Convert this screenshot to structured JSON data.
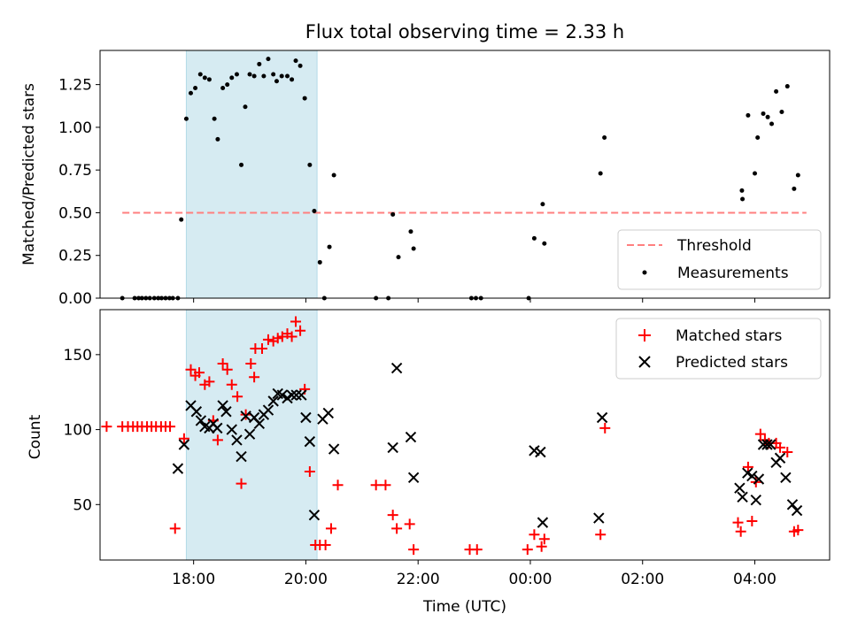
{
  "title": "Flux total observing time = 2.33 h",
  "colors": {
    "threshold": "#ff7f7f",
    "measurement": "#000000",
    "matched": "#ff0000",
    "predicted": "#000000",
    "shade": "#add8e6"
  },
  "chart_data": [
    {
      "type": "scatter",
      "ylabel": "Matched/Predicted stars",
      "xlim_hours": [
        16.333,
        29.333
      ],
      "ylim": [
        0,
        1.45
      ],
      "yticks": [
        0,
        0.25,
        0.5,
        0.75,
        1.0,
        1.25
      ],
      "ytick_labels": [
        "0.00",
        "0.25",
        "0.50",
        "0.75",
        "1.00",
        "1.25"
      ],
      "x_unit": "hours UTC from 00:00 of first night",
      "shaded_span_hours": [
        17.87,
        20.2
      ],
      "threshold": {
        "label": "Threshold",
        "y": 0.5,
        "x_range_hours": [
          16.73,
          28.92
        ]
      },
      "legend": {
        "position": "lower right",
        "entries": [
          "Threshold",
          "Measurements"
        ]
      },
      "series": [
        {
          "name": "Measurements",
          "points": [
            [
              16.73,
              0.0
            ],
            [
              16.95,
              0.0
            ],
            [
              17.02,
              0.0
            ],
            [
              17.08,
              0.0
            ],
            [
              17.15,
              0.0
            ],
            [
              17.22,
              0.0
            ],
            [
              17.3,
              0.0
            ],
            [
              17.37,
              0.0
            ],
            [
              17.43,
              0.0
            ],
            [
              17.5,
              0.0
            ],
            [
              17.57,
              0.0
            ],
            [
              17.63,
              0.0
            ],
            [
              17.72,
              0.0
            ],
            [
              17.78,
              0.46
            ],
            [
              17.87,
              1.05
            ],
            [
              17.95,
              1.2
            ],
            [
              18.03,
              1.23
            ],
            [
              18.12,
              1.31
            ],
            [
              18.2,
              1.29
            ],
            [
              18.28,
              1.28
            ],
            [
              18.37,
              1.05
            ],
            [
              18.43,
              0.93
            ],
            [
              18.52,
              1.23
            ],
            [
              18.6,
              1.25
            ],
            [
              18.68,
              1.29
            ],
            [
              18.77,
              1.31
            ],
            [
              18.85,
              0.78
            ],
            [
              18.92,
              1.12
            ],
            [
              19.0,
              1.31
            ],
            [
              19.08,
              1.3
            ],
            [
              19.17,
              1.37
            ],
            [
              19.25,
              1.3
            ],
            [
              19.33,
              1.4
            ],
            [
              19.42,
              1.31
            ],
            [
              19.48,
              1.27
            ],
            [
              19.57,
              1.3
            ],
            [
              19.67,
              1.3
            ],
            [
              19.75,
              1.28
            ],
            [
              19.82,
              1.39
            ],
            [
              19.9,
              1.36
            ],
            [
              19.98,
              1.17
            ],
            [
              20.07,
              0.78
            ],
            [
              20.15,
              0.51
            ],
            [
              20.25,
              0.21
            ],
            [
              20.33,
              0.0
            ],
            [
              20.42,
              0.3
            ],
            [
              20.5,
              0.72
            ],
            [
              21.25,
              0.0
            ],
            [
              21.47,
              0.0
            ],
            [
              21.55,
              0.49
            ],
            [
              21.65,
              0.24
            ],
            [
              21.87,
              0.39
            ],
            [
              21.92,
              0.29
            ],
            [
              22.95,
              0.0
            ],
            [
              23.03,
              0.0
            ],
            [
              23.12,
              0.0
            ],
            [
              23.97,
              0.0
            ],
            [
              24.07,
              0.35
            ],
            [
              24.22,
              0.55
            ],
            [
              24.25,
              0.32
            ],
            [
              25.25,
              0.73
            ],
            [
              25.32,
              0.94
            ],
            [
              27.77,
              0.63
            ],
            [
              27.78,
              0.58
            ],
            [
              27.88,
              1.07
            ],
            [
              28.0,
              0.73
            ],
            [
              28.05,
              0.94
            ],
            [
              28.15,
              1.08
            ],
            [
              28.23,
              1.06
            ],
            [
              28.3,
              1.02
            ],
            [
              28.38,
              1.21
            ],
            [
              28.48,
              1.09
            ],
            [
              28.58,
              1.24
            ],
            [
              28.7,
              0.64
            ],
            [
              28.77,
              0.72
            ]
          ]
        }
      ]
    },
    {
      "type": "scatter",
      "xlabel": "Time (UTC)",
      "ylabel": "Count",
      "xlim_hours": [
        16.333,
        29.333
      ],
      "ylim": [
        13,
        180
      ],
      "yticks": [
        50,
        100,
        150
      ],
      "ytick_labels": [
        "50",
        "100",
        "150"
      ],
      "xticks_hours": [
        18,
        20,
        22,
        24,
        26,
        28
      ],
      "xtick_labels": [
        "18:00",
        "20:00",
        "22:00",
        "00:00",
        "02:00",
        "04:00"
      ],
      "shaded_span_hours": [
        17.87,
        20.2
      ],
      "legend": {
        "position": "upper right",
        "entries": [
          "Matched stars",
          "Predicted stars"
        ]
      },
      "series": [
        {
          "name": "Matched stars",
          "points": [
            [
              16.45,
              102
            ],
            [
              16.73,
              102
            ],
            [
              16.83,
              102
            ],
            [
              16.92,
              102
            ],
            [
              17.0,
              102
            ],
            [
              17.08,
              102
            ],
            [
              17.17,
              102
            ],
            [
              17.25,
              102
            ],
            [
              17.33,
              102
            ],
            [
              17.42,
              102
            ],
            [
              17.5,
              102
            ],
            [
              17.58,
              102
            ],
            [
              17.67,
              34
            ],
            [
              17.83,
              94
            ],
            [
              17.95,
              140
            ],
            [
              18.03,
              136
            ],
            [
              18.1,
              138
            ],
            [
              18.2,
              130
            ],
            [
              18.28,
              132
            ],
            [
              18.35,
              106
            ],
            [
              18.43,
              93
            ],
            [
              18.52,
              144
            ],
            [
              18.6,
              140
            ],
            [
              18.68,
              130
            ],
            [
              18.78,
              122
            ],
            [
              18.85,
              64
            ],
            [
              18.93,
              110
            ],
            [
              19.02,
              144
            ],
            [
              19.08,
              135
            ],
            [
              19.1,
              154
            ],
            [
              19.22,
              154
            ],
            [
              19.33,
              160
            ],
            [
              19.42,
              159
            ],
            [
              19.5,
              161
            ],
            [
              19.58,
              162
            ],
            [
              19.67,
              164
            ],
            [
              19.75,
              162
            ],
            [
              19.82,
              172
            ],
            [
              19.9,
              166
            ],
            [
              19.98,
              127
            ],
            [
              20.07,
              72
            ],
            [
              20.17,
              23
            ],
            [
              20.25,
              23
            ],
            [
              20.35,
              23
            ],
            [
              20.45,
              34
            ],
            [
              20.57,
              63
            ],
            [
              21.25,
              63
            ],
            [
              21.42,
              63
            ],
            [
              21.55,
              43
            ],
            [
              21.62,
              34
            ],
            [
              21.85,
              37
            ],
            [
              21.92,
              20
            ],
            [
              22.92,
              20
            ],
            [
              23.05,
              20
            ],
            [
              23.95,
              20
            ],
            [
              24.07,
              30
            ],
            [
              24.2,
              22
            ],
            [
              24.25,
              27
            ],
            [
              25.25,
              30
            ],
            [
              25.33,
              101
            ],
            [
              27.7,
              38
            ],
            [
              27.75,
              32
            ],
            [
              27.88,
              75
            ],
            [
              27.95,
              39
            ],
            [
              28.02,
              65
            ],
            [
              28.1,
              97
            ],
            [
              28.18,
              93
            ],
            [
              28.25,
              91
            ],
            [
              28.38,
              91
            ],
            [
              28.45,
              88
            ],
            [
              28.58,
              85
            ],
            [
              28.7,
              32
            ],
            [
              28.77,
              33
            ]
          ]
        },
        {
          "name": "Predicted stars",
          "points": [
            [
              17.72,
              74
            ],
            [
              17.83,
              90
            ],
            [
              17.95,
              116
            ],
            [
              18.05,
              112
            ],
            [
              18.13,
              106
            ],
            [
              18.2,
              102
            ],
            [
              18.28,
              101
            ],
            [
              18.35,
              104
            ],
            [
              18.42,
              101
            ],
            [
              18.52,
              116
            ],
            [
              18.58,
              112
            ],
            [
              18.68,
              100
            ],
            [
              18.77,
              93
            ],
            [
              18.85,
              82
            ],
            [
              18.93,
              109
            ],
            [
              19.0,
              97
            ],
            [
              19.08,
              108
            ],
            [
              19.17,
              104
            ],
            [
              19.25,
              110
            ],
            [
              19.33,
              113
            ],
            [
              19.42,
              119
            ],
            [
              19.5,
              124
            ],
            [
              19.58,
              123
            ],
            [
              19.67,
              121
            ],
            [
              19.75,
              123
            ],
            [
              19.83,
              123
            ],
            [
              19.92,
              123
            ],
            [
              20.0,
              108
            ],
            [
              20.07,
              92
            ],
            [
              20.15,
              43
            ],
            [
              20.3,
              107
            ],
            [
              20.4,
              111
            ],
            [
              20.5,
              87
            ],
            [
              21.55,
              88
            ],
            [
              21.62,
              141
            ],
            [
              21.87,
              95
            ],
            [
              21.92,
              68
            ],
            [
              24.07,
              86
            ],
            [
              24.18,
              85
            ],
            [
              24.22,
              38
            ],
            [
              25.22,
              41
            ],
            [
              25.28,
              108
            ],
            [
              27.73,
              61
            ],
            [
              27.78,
              55
            ],
            [
              27.87,
              71
            ],
            [
              27.95,
              69
            ],
            [
              28.02,
              53
            ],
            [
              28.07,
              67
            ],
            [
              28.15,
              90
            ],
            [
              28.22,
              90
            ],
            [
              28.28,
              90
            ],
            [
              28.38,
              78
            ],
            [
              28.45,
              81
            ],
            [
              28.55,
              68
            ],
            [
              28.67,
              50
            ],
            [
              28.75,
              46
            ]
          ]
        }
      ]
    }
  ]
}
